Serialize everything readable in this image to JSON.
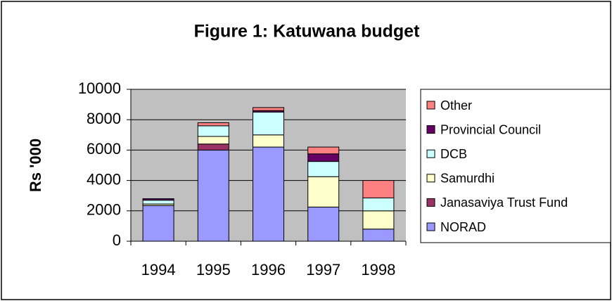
{
  "chart_data": {
    "type": "stacked-bar",
    "title": "Figure 1: Katuwana budget",
    "y_label": "Rs '000",
    "categories": [
      "1994",
      "1995",
      "1996",
      "1997",
      "1998"
    ],
    "series": [
      {
        "name": "NORAD",
        "color": "#9999ff",
        "values": [
          2350,
          6000,
          6200,
          2250,
          800
        ]
      },
      {
        "name": "Janasaviya Trust Fund",
        "color": "#993366",
        "values": [
          0,
          400,
          0,
          0,
          0
        ]
      },
      {
        "name": "Samurdhi",
        "color": "#ffffcc",
        "values": [
          100,
          500,
          800,
          2000,
          1200
        ]
      },
      {
        "name": "DCB",
        "color": "#ccffff",
        "values": [
          250,
          700,
          1500,
          1000,
          850
        ]
      },
      {
        "name": "Provincial Council",
        "color": "#660066",
        "values": [
          100,
          0,
          100,
          500,
          0
        ]
      },
      {
        "name": "Other",
        "color": "#ff8080",
        "values": [
          0,
          200,
          200,
          450,
          1150
        ]
      }
    ],
    "ylim": [
      0,
      10000
    ],
    "yticks": [
      0,
      2000,
      4000,
      6000,
      8000,
      10000
    ],
    "grid": true,
    "legend": "right"
  }
}
